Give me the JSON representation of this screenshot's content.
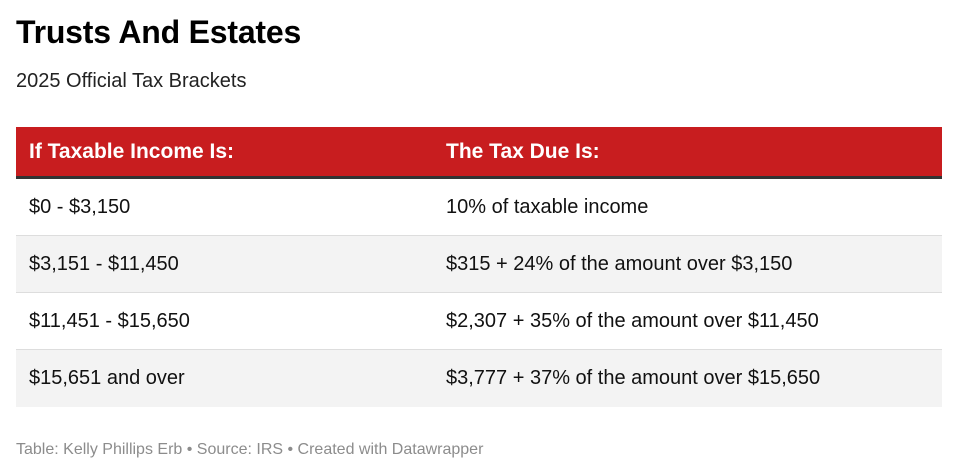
{
  "title": "Trusts And Estates",
  "subtitle": "2025 Official Tax Brackets",
  "footer": "Table: Kelly Phillips Erb • Source: IRS • Created with Datawrapper",
  "colors": {
    "header_bg": "#c81d1f",
    "header_text": "#ffffff",
    "alt_row_bg": "#f3f3f3",
    "footer_text": "#8c8c8c"
  },
  "chart_data": {
    "type": "table",
    "title": "Trusts And Estates",
    "subtitle": "2025 Official Tax Brackets",
    "columns": [
      "If Taxable Income Is:",
      "The Tax Due Is:"
    ],
    "rows": [
      [
        "$0 - $3,150",
        "10% of taxable income"
      ],
      [
        "$3,151 - $11,450",
        "$315 + 24% of the amount over $3,150"
      ],
      [
        "$11,451 - $15,650",
        "$2,307 + 35% of the amount over $11,450"
      ],
      [
        "$15,651 and over",
        "$3,777 + 37% of the amount over $15,650"
      ]
    ]
  }
}
